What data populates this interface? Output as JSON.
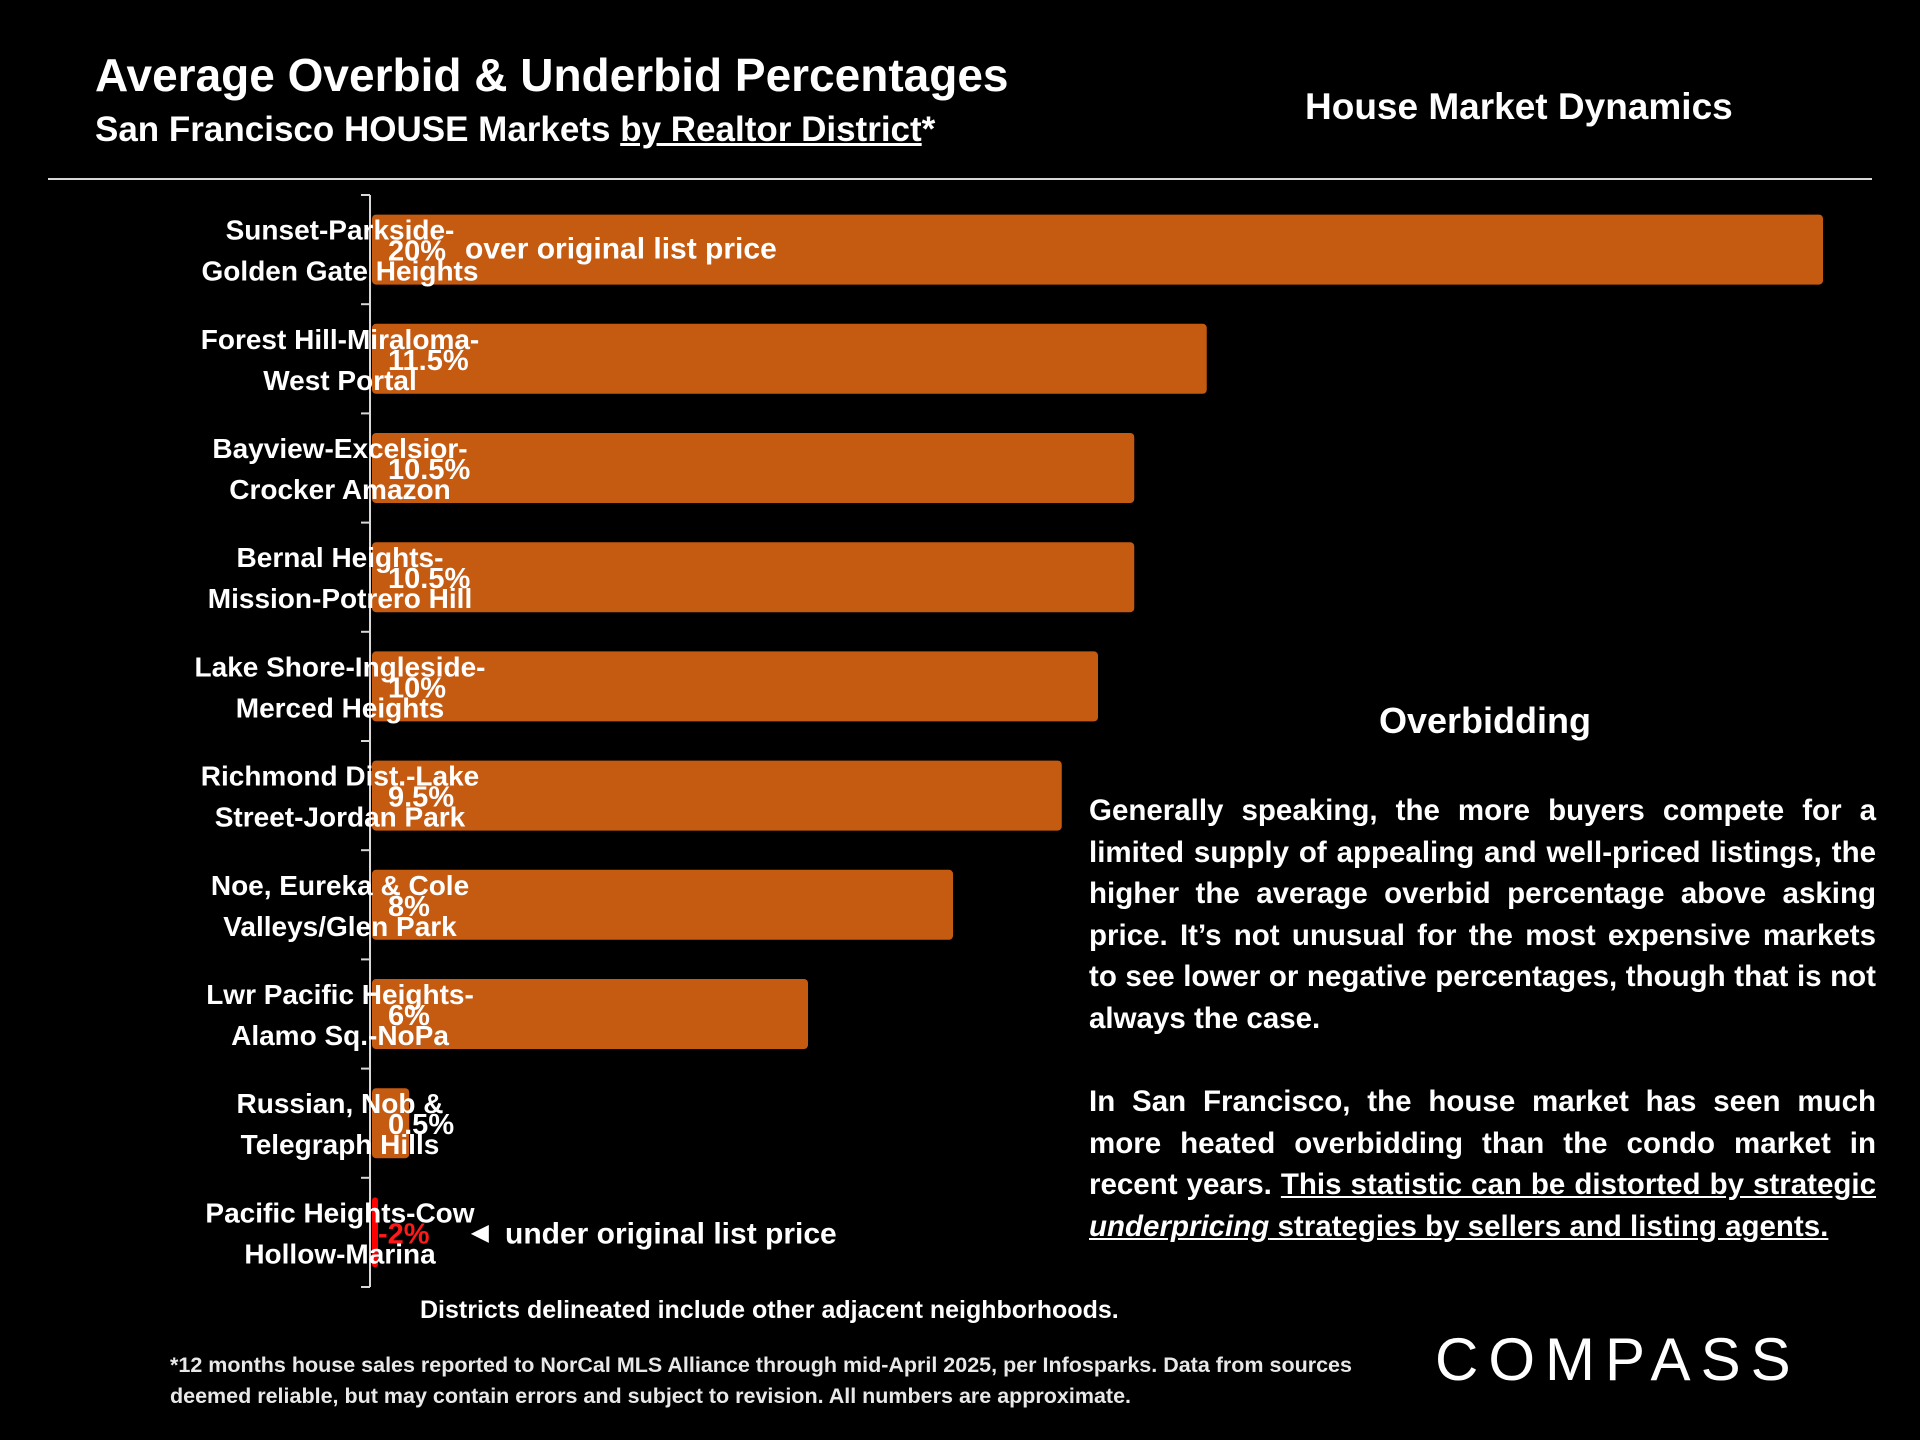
{
  "header": {
    "title": "Average Overbid & Underbid Percentages",
    "subtitle_prefix": "San Francisco HOUSE Markets ",
    "subtitle_underlined": "by Realtor District",
    "subtitle_suffix": "*",
    "top_right": "House Market Dynamics"
  },
  "chart_data": {
    "type": "bar",
    "orientation": "horizontal",
    "categories": [
      [
        "Sunset-Parkside-",
        "Golden Gate Heights"
      ],
      [
        "Forest Hill-Miraloma-",
        "West Portal"
      ],
      [
        "Bayview-Excelsior-",
        "Crocker Amazon"
      ],
      [
        "Bernal Heights-",
        "Mission-Potrero Hill"
      ],
      [
        "Lake Shore-Ingleside-",
        "Merced Heights"
      ],
      [
        "Richmond Dist.-Lake",
        "Street-Jordan Park"
      ],
      [
        "Noe, Eureka & Cole",
        "Valleys/Glen Park"
      ],
      [
        "Lwr Pacific Heights-",
        "Alamo Sq.-NoPa"
      ],
      [
        "Russian, Nob &",
        "Telegraph Hills"
      ],
      [
        "Pacific Heights-Cow",
        "Hollow-Marina"
      ]
    ],
    "values": [
      20,
      11.5,
      10.5,
      10.5,
      10,
      9.5,
      8,
      6,
      0.5,
      -2
    ],
    "value_labels": [
      "20%",
      "11.5%",
      "10.5%",
      "10.5%",
      "10%",
      "9.5%",
      "8%",
      "6%",
      "0.5%",
      "-2%"
    ],
    "annotations": {
      "top": "over original list price",
      "bottom": "under original list price",
      "bottom_arrow": "◄"
    },
    "xlim": [
      -0.1,
      20
    ],
    "colors": {
      "positive": "#c55a11",
      "negative": "#ff0000"
    },
    "grid": false,
    "legend": "none"
  },
  "panel": {
    "title": "Overbidding",
    "paragraph1": "Generally speaking, the more buyers compete for a limited supply of appealing and well-priced listings, the higher the average overbid percentage above asking price. It’s not unusual for the most expensive markets to see lower or negative percentages, though that is not always the case.",
    "paragraph2_plain": "In San Francisco, the house market has seen much more heated overbidding than the condo market in recent years. ",
    "paragraph2_u1": "This statistic can be distorted by strategic ",
    "paragraph2_u_italic": "underpricing",
    "paragraph2_u2": " strategies by sellers and listing agents."
  },
  "footer": {
    "districts_note": "Districts delineated include other adjacent neighborhoods.",
    "footnote": "*12 months house sales reported to NorCal MLS Alliance through mid-April 2025, per Infosparks. Data from sources deemed reliable, but may contain errors and subject to revision. All numbers are approximate.",
    "logo": "COMPASS"
  }
}
